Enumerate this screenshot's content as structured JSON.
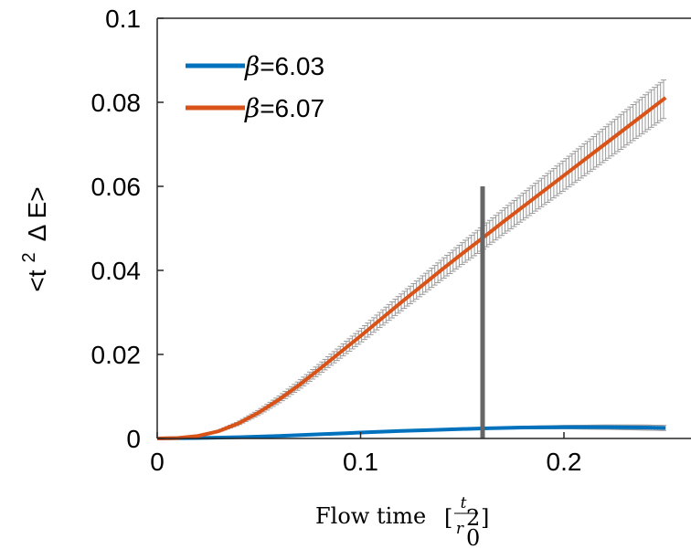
{
  "chart_data": {
    "type": "line",
    "title": "",
    "xlabel_text": "Flow time",
    "xlabel_math": {
      "numerator": "t",
      "denominator": "r",
      "superscript": "2",
      "subscript": "0"
    },
    "ylabel": "<t ² Δ E>",
    "ylabel_parts": {
      "pre": "<t",
      "sup": "2",
      "post": "Δ E>"
    },
    "xlim": [
      0,
      0.25
    ],
    "ylim": [
      0,
      0.1
    ],
    "x_ticks": [
      0,
      0.1,
      0.2
    ],
    "x_tick_labels": [
      "0",
      "0.1",
      "0.2"
    ],
    "y_ticks": [
      0,
      0.02,
      0.04,
      0.06,
      0.08,
      0.1
    ],
    "y_tick_labels": [
      "0",
      "0.02",
      "0.04",
      "0.06",
      "0.08",
      "0.1"
    ],
    "grid": false,
    "legend_position": "top-left",
    "vertical_marker": {
      "x": 0.16,
      "y_top": 0.06,
      "color": "#666666"
    },
    "series": [
      {
        "name": "β=6.03",
        "name_prefix": "β",
        "name_value": "=6.03",
        "color": "#0072BD",
        "x": [
          0,
          0.02,
          0.04,
          0.06,
          0.08,
          0.1,
          0.12,
          0.14,
          0.16,
          0.18,
          0.2,
          0.22,
          0.24,
          0.25
        ],
        "y": [
          0,
          0.0001,
          0.0003,
          0.0006,
          0.001,
          0.0014,
          0.0018,
          0.0021,
          0.0024,
          0.0026,
          0.0027,
          0.0027,
          0.0026,
          0.0025
        ],
        "err": [
          0,
          0,
          0,
          0,
          0,
          0,
          0,
          0,
          0.0002,
          0.0003,
          0.0004,
          0.0005,
          0.0006,
          0.0006
        ]
      },
      {
        "name": "β=6.07",
        "name_prefix": "β",
        "name_value": "=6.07",
        "color": "#D95319",
        "x": [
          0,
          0.01,
          0.02,
          0.03,
          0.04,
          0.05,
          0.06,
          0.07,
          0.08,
          0.09,
          0.1,
          0.11,
          0.12,
          0.13,
          0.14,
          0.15,
          0.16,
          0.17,
          0.18,
          0.19,
          0.2,
          0.21,
          0.22,
          0.23,
          0.24,
          0.25
        ],
        "y": [
          0,
          0.0001,
          0.0006,
          0.0017,
          0.0036,
          0.0062,
          0.0093,
          0.0128,
          0.0166,
          0.0205,
          0.0244,
          0.0284,
          0.0324,
          0.0363,
          0.0402,
          0.044,
          0.0477,
          0.0515,
          0.0552,
          0.0589,
          0.0626,
          0.0663,
          0.07,
          0.0737,
          0.0774,
          0.0811
        ],
        "err": [
          0,
          0,
          0.0001,
          0.0002,
          0.0004,
          0.0006,
          0.0008,
          0.001,
          0.0012,
          0.0014,
          0.0016,
          0.0018,
          0.002,
          0.0022,
          0.0024,
          0.0026,
          0.0028,
          0.003,
          0.0032,
          0.0034,
          0.0036,
          0.0038,
          0.004,
          0.0042,
          0.0044,
          0.0046
        ]
      }
    ]
  }
}
